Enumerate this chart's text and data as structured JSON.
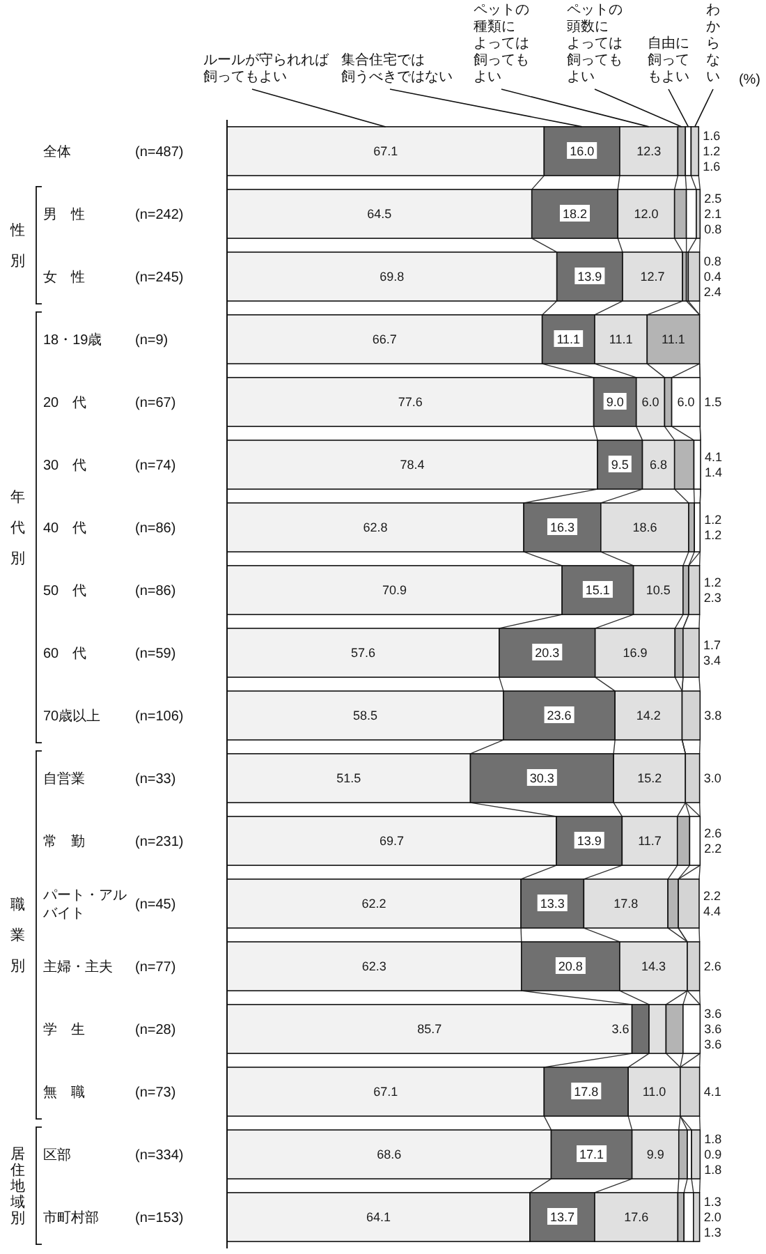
{
  "chart_data": {
    "type": "bar",
    "orientation": "horizontal",
    "stacked": true,
    "legend": "top",
    "categories": [
      "全体",
      "男　性",
      "女　性",
      "18・19歳",
      "20　代",
      "30　代",
      "40　代",
      "50　代",
      "60　代",
      "70歳以上",
      "自営業",
      "常　勤",
      "パート・アルバイト",
      "主婦・主夫",
      "学　生",
      "無　職",
      "区部",
      "市町村部"
    ],
    "y2_categories": [
      "(n=487)",
      "(n=242)",
      "(n=245)",
      "(n=9)",
      "(n=67)",
      "(n=74)",
      "(n=86)",
      "(n=86)",
      "(n=59)",
      "(n=106)",
      "(n=33)",
      "(n=231)",
      "(n=45)",
      "(n=77)",
      "(n=28)",
      "(n=73)",
      "(n=334)",
      "(n=153)"
    ],
    "series": [
      {
        "name": "ルールが守られれば飼ってもよい",
        "color": "#f2f2f2",
        "values": [
          67.1,
          64.5,
          69.8,
          66.7,
          77.6,
          78.4,
          62.8,
          70.9,
          57.6,
          58.5,
          51.5,
          69.7,
          62.2,
          62.3,
          85.7,
          67.1,
          68.6,
          64.1
        ],
        "value_labels": [
          "67.1",
          "64.5",
          "69.8",
          "66.7",
          "77.6",
          "78.4",
          "62.8",
          "70.9",
          "57.6",
          "58.5",
          "51.5",
          "69.7",
          "62.2",
          "62.3",
          "85.7",
          "67.1",
          "68.6",
          "64.1"
        ]
      },
      {
        "name": "集合住宅では飼うべきではない",
        "color": "#707070",
        "values": [
          16.0,
          18.2,
          13.9,
          11.1,
          9.0,
          9.5,
          16.3,
          15.1,
          20.3,
          23.6,
          30.3,
          13.9,
          13.3,
          20.8,
          3.6,
          17.8,
          17.1,
          13.7
        ],
        "value_labels": [
          "16.0",
          "18.2",
          "13.9",
          "11.1",
          "9.0",
          "9.5",
          "16.3",
          "15.1",
          "20.3",
          "23.6",
          "30.3",
          "13.9",
          "13.3",
          "20.8",
          "3.6",
          "17.8",
          "17.1",
          "13.7"
        ]
      },
      {
        "name": "ペットの種類によっては飼ってもよい",
        "color": "#e0e0e0",
        "values": [
          12.3,
          12.0,
          12.7,
          11.1,
          6.0,
          6.8,
          18.6,
          10.5,
          16.9,
          14.2,
          15.2,
          11.7,
          17.8,
          14.3,
          3.6,
          11.0,
          9.9,
          17.6
        ],
        "value_labels": [
          "12.3",
          "12.0",
          "12.7",
          "11.1",
          "6.0",
          "6.8",
          "18.6",
          "10.5",
          "16.9",
          "14.2",
          "15.2",
          "11.7",
          "17.8",
          "14.3",
          "3.6",
          "11.0",
          "9.9",
          "17.6"
        ]
      },
      {
        "name": "ペットの頭数によっては飼ってもよい",
        "color": "#b4b4b4",
        "values": [
          1.6,
          2.5,
          0.8,
          11.1,
          1.5,
          4.1,
          1.2,
          1.2,
          1.7,
          null,
          null,
          2.6,
          2.2,
          null,
          3.6,
          null,
          1.8,
          1.3
        ],
        "value_labels": [
          "1.6",
          "2.5",
          "0.8",
          "11.1",
          "1.5",
          "4.1",
          "1.2",
          "1.2",
          "1.7",
          null,
          null,
          "2.6",
          "2.2",
          null,
          "3.6",
          null,
          "1.8",
          "1.3"
        ]
      },
      {
        "name": "自由に飼ってもよい",
        "color": "#ffffff",
        "values": [
          1.2,
          2.1,
          0.4,
          null,
          6.0,
          1.4,
          1.2,
          null,
          null,
          null,
          null,
          2.2,
          null,
          null,
          3.6,
          null,
          0.9,
          2.0
        ],
        "value_labels": [
          "1.2",
          "2.1",
          "0.4",
          null,
          "6.0",
          "1.4",
          "1.2",
          null,
          null,
          null,
          null,
          "2.2",
          null,
          null,
          "3.6",
          null,
          "0.9",
          "2.0"
        ]
      },
      {
        "name": "わからない",
        "color": "#d4d4d4",
        "values": [
          1.6,
          0.8,
          2.4,
          null,
          null,
          null,
          null,
          2.3,
          3.4,
          3.8,
          3.0,
          null,
          4.4,
          2.6,
          null,
          4.1,
          1.8,
          1.3
        ],
        "value_labels": [
          "1.6",
          "0.8",
          "2.4",
          null,
          null,
          null,
          null,
          "2.3",
          "3.4",
          "3.8",
          "3.0",
          null,
          "4.4",
          "2.6",
          null,
          "4.1",
          "1.8",
          "1.3"
        ]
      }
    ],
    "annotations": [
      "(%)",
      "性別",
      "年代別",
      "職業別",
      "居住地域別"
    ]
  }
}
